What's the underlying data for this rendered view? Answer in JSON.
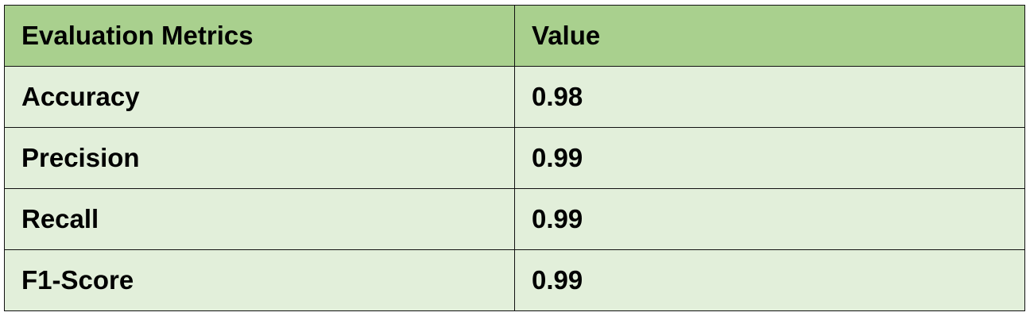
{
  "colors": {
    "header_background": "#a9d08e",
    "row_background": "#e2efda",
    "border": "#111111",
    "text": "#000000"
  },
  "table": {
    "headers": [
      "Evaluation Metrics",
      "Value"
    ],
    "rows": [
      [
        "Accuracy",
        "0.98"
      ],
      [
        "Precision",
        "0.99"
      ],
      [
        "Recall",
        "0.99"
      ],
      [
        "F1-Score",
        "0.99"
      ]
    ]
  }
}
